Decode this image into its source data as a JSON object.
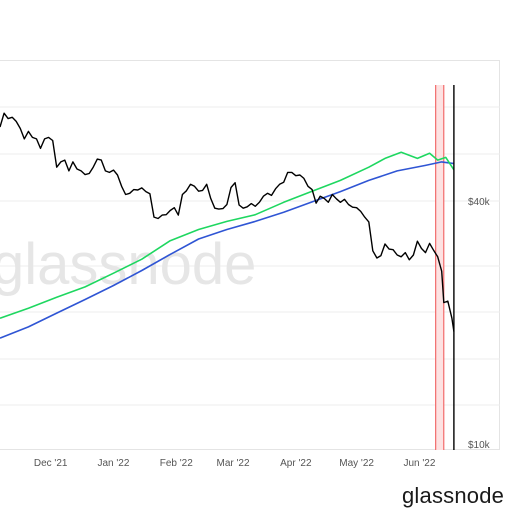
{
  "brand": {
    "logo_text": "glassnode",
    "watermark_text": "glassnode"
  },
  "chart_data": {
    "type": "line",
    "title": "",
    "xlabel": "",
    "ylabel": "",
    "y_scale": "log",
    "ylim": [
      10000,
      100000
    ],
    "y_ticks": [
      {
        "label": "$40k",
        "value": 40000
      },
      {
        "label": "$10k",
        "value": 10000
      }
    ],
    "x_range": [
      "2021-11-06",
      "2022-06-22"
    ],
    "x_ticks": [
      {
        "label": "Dec '21",
        "date": "2021-12-01"
      },
      {
        "label": "Jan '22",
        "date": "2022-01-01"
      },
      {
        "label": "Feb '22",
        "date": "2022-02-01"
      },
      {
        "label": "Mar '22",
        "date": "2022-03-01"
      },
      {
        "label": "Apr '22",
        "date": "2022-04-01"
      },
      {
        "label": "May '22",
        "date": "2022-05-01"
      },
      {
        "label": "Jun '22",
        "date": "2022-06-01"
      }
    ],
    "highlight_band": {
      "start": "2022-06-09",
      "end": "2022-06-13",
      "color": "#f26b6b"
    },
    "event_line": {
      "date": "2022-06-18",
      "color": "#000000"
    },
    "grid": true,
    "legend": "none",
    "series": [
      {
        "color": "#000000",
        "points": [
          [
            "2021-11-06",
            61000
          ],
          [
            "2021-11-08",
            66000
          ],
          [
            "2021-11-10",
            64000
          ],
          [
            "2021-11-12",
            64500
          ],
          [
            "2021-11-14",
            63000
          ],
          [
            "2021-11-16",
            60500
          ],
          [
            "2021-11-18",
            57000
          ],
          [
            "2021-11-20",
            59500
          ],
          [
            "2021-11-22",
            57500
          ],
          [
            "2021-11-24",
            57000
          ],
          [
            "2021-11-26",
            54000
          ],
          [
            "2021-11-28",
            57000
          ],
          [
            "2021-11-30",
            57500
          ],
          [
            "2021-12-02",
            56500
          ],
          [
            "2021-12-04",
            48500
          ],
          [
            "2021-12-06",
            50000
          ],
          [
            "2021-12-08",
            50500
          ],
          [
            "2021-12-10",
            47500
          ],
          [
            "2021-12-12",
            50000
          ],
          [
            "2021-12-14",
            48000
          ],
          [
            "2021-12-16",
            47500
          ],
          [
            "2021-12-18",
            46500
          ],
          [
            "2021-12-20",
            46800
          ],
          [
            "2021-12-22",
            48500
          ],
          [
            "2021-12-24",
            50800
          ],
          [
            "2021-12-26",
            50500
          ],
          [
            "2021-12-28",
            47500
          ],
          [
            "2021-12-30",
            47100
          ],
          [
            "2022-01-01",
            47700
          ],
          [
            "2022-01-03",
            46400
          ],
          [
            "2022-01-05",
            43500
          ],
          [
            "2022-01-07",
            41500
          ],
          [
            "2022-01-09",
            41800
          ],
          [
            "2022-01-11",
            42700
          ],
          [
            "2022-01-13",
            42600
          ],
          [
            "2022-01-15",
            43100
          ],
          [
            "2022-01-17",
            42200
          ],
          [
            "2022-01-19",
            41700
          ],
          [
            "2022-01-21",
            36500
          ],
          [
            "2022-01-23",
            36200
          ],
          [
            "2022-01-25",
            36900
          ],
          [
            "2022-01-27",
            37000
          ],
          [
            "2022-01-29",
            37900
          ],
          [
            "2022-01-31",
            38500
          ],
          [
            "2022-02-02",
            36900
          ],
          [
            "2022-02-04",
            41500
          ],
          [
            "2022-02-06",
            42400
          ],
          [
            "2022-02-08",
            44000
          ],
          [
            "2022-02-10",
            43500
          ],
          [
            "2022-02-12",
            42300
          ],
          [
            "2022-02-14",
            42500
          ],
          [
            "2022-02-16",
            44000
          ],
          [
            "2022-02-18",
            40600
          ],
          [
            "2022-02-20",
            38400
          ],
          [
            "2022-02-22",
            38200
          ],
          [
            "2022-02-24",
            38300
          ],
          [
            "2022-02-26",
            39200
          ],
          [
            "2022-02-28",
            43200
          ],
          [
            "2022-03-02",
            44400
          ],
          [
            "2022-03-04",
            39100
          ],
          [
            "2022-03-06",
            38400
          ],
          [
            "2022-03-08",
            38700
          ],
          [
            "2022-03-10",
            39400
          ],
          [
            "2022-03-12",
            38800
          ],
          [
            "2022-03-14",
            39700
          ],
          [
            "2022-03-16",
            41100
          ],
          [
            "2022-03-18",
            41800
          ],
          [
            "2022-03-20",
            41300
          ],
          [
            "2022-03-22",
            42900
          ],
          [
            "2022-03-24",
            44000
          ],
          [
            "2022-03-26",
            44500
          ],
          [
            "2022-03-28",
            47100
          ],
          [
            "2022-03-30",
            47100
          ],
          [
            "2022-04-01",
            46200
          ],
          [
            "2022-04-03",
            46400
          ],
          [
            "2022-04-05",
            45500
          ],
          [
            "2022-04-07",
            43500
          ],
          [
            "2022-04-09",
            42700
          ],
          [
            "2022-04-11",
            39500
          ],
          [
            "2022-04-13",
            41100
          ],
          [
            "2022-04-15",
            40600
          ],
          [
            "2022-04-17",
            39700
          ],
          [
            "2022-04-19",
            41500
          ],
          [
            "2022-04-21",
            40500
          ],
          [
            "2022-04-23",
            39700
          ],
          [
            "2022-04-25",
            40400
          ],
          [
            "2022-04-27",
            39200
          ],
          [
            "2022-04-29",
            38600
          ],
          [
            "2022-05-01",
            38500
          ],
          [
            "2022-05-03",
            37700
          ],
          [
            "2022-05-05",
            36500
          ],
          [
            "2022-05-07",
            35500
          ],
          [
            "2022-05-09",
            30100
          ],
          [
            "2022-05-11",
            28900
          ],
          [
            "2022-05-13",
            29300
          ],
          [
            "2022-05-15",
            31300
          ],
          [
            "2022-05-17",
            30400
          ],
          [
            "2022-05-19",
            30300
          ],
          [
            "2022-05-21",
            29400
          ],
          [
            "2022-05-23",
            29100
          ],
          [
            "2022-05-25",
            29800
          ],
          [
            "2022-05-27",
            28600
          ],
          [
            "2022-05-29",
            29400
          ],
          [
            "2022-05-31",
            31800
          ],
          [
            "2022-06-02",
            30500
          ],
          [
            "2022-06-04",
            29800
          ],
          [
            "2022-06-06",
            31400
          ],
          [
            "2022-06-08",
            30200
          ],
          [
            "2022-06-10",
            29100
          ],
          [
            "2022-06-12",
            26800
          ],
          [
            "2022-06-13",
            22400
          ],
          [
            "2022-06-15",
            22600
          ],
          [
            "2022-06-17",
            20500
          ],
          [
            "2022-06-18",
            19000
          ]
        ]
      },
      {
        "color": "#1ed760",
        "points": [
          [
            "2021-11-06",
            20500
          ],
          [
            "2021-11-20",
            21700
          ],
          [
            "2021-12-04",
            23100
          ],
          [
            "2021-12-18",
            24500
          ],
          [
            "2022-01-01",
            26500
          ],
          [
            "2022-01-15",
            28700
          ],
          [
            "2022-01-29",
            31900
          ],
          [
            "2022-02-12",
            34000
          ],
          [
            "2022-02-26",
            35600
          ],
          [
            "2022-03-12",
            37000
          ],
          [
            "2022-03-26",
            39700
          ],
          [
            "2022-04-09",
            42300
          ],
          [
            "2022-04-23",
            45000
          ],
          [
            "2022-05-07",
            48500
          ],
          [
            "2022-05-15",
            51000
          ],
          [
            "2022-05-23",
            52800
          ],
          [
            "2022-05-31",
            51000
          ],
          [
            "2022-06-06",
            52500
          ],
          [
            "2022-06-10",
            50500
          ],
          [
            "2022-06-14",
            51300
          ],
          [
            "2022-06-18",
            47800
          ]
        ]
      },
      {
        "color": "#2f55d4",
        "points": [
          [
            "2021-11-06",
            18300
          ],
          [
            "2021-11-20",
            19500
          ],
          [
            "2021-12-04",
            21100
          ],
          [
            "2021-12-18",
            22800
          ],
          [
            "2022-01-01",
            24700
          ],
          [
            "2022-01-15",
            26900
          ],
          [
            "2022-01-29",
            29500
          ],
          [
            "2022-02-12",
            32200
          ],
          [
            "2022-02-26",
            34000
          ],
          [
            "2022-03-12",
            35600
          ],
          [
            "2022-03-26",
            37500
          ],
          [
            "2022-04-09",
            39800
          ],
          [
            "2022-04-23",
            42200
          ],
          [
            "2022-05-07",
            45000
          ],
          [
            "2022-05-21",
            47500
          ],
          [
            "2022-06-04",
            49000
          ],
          [
            "2022-06-12",
            50000
          ],
          [
            "2022-06-18",
            49500
          ]
        ]
      }
    ]
  }
}
